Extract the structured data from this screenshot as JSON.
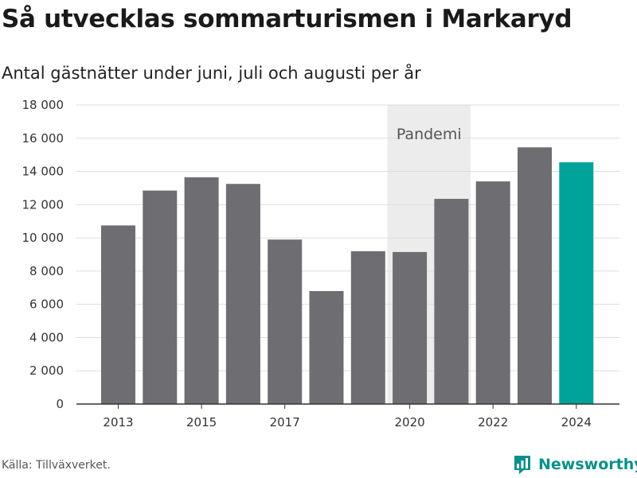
{
  "header": {
    "title": "Så utvecklas sommarturismen i Markaryd",
    "subtitle": "Antal gästnätter under juni, juli och augusti per år"
  },
  "footer": {
    "source": "Källa: Tillväxverket.",
    "brand": "Newsworthy",
    "brand_icon": "bar-chart-logo-icon"
  },
  "colors": {
    "bar": "#6e6d72",
    "highlight": "#00a39a",
    "pandemic_band": "#ececec",
    "grid": "#dddddd",
    "axis": "#333333",
    "brand": "#0a8f8a"
  },
  "chart_data": {
    "type": "bar",
    "categories": [
      2013,
      2014,
      2015,
      2016,
      2017,
      2018,
      2019,
      2020,
      2021,
      2022,
      2023,
      2024
    ],
    "values": [
      10750,
      12850,
      13650,
      13250,
      9900,
      6800,
      9200,
      9150,
      12350,
      13400,
      15450,
      14550
    ],
    "highlight_category": 2024,
    "ylim": [
      0,
      18000
    ],
    "yticks": [
      0,
      2000,
      4000,
      6000,
      8000,
      10000,
      12000,
      14000,
      16000,
      18000
    ],
    "ytick_labels": [
      "0",
      "2 000",
      "4 000",
      "6 000",
      "8 000",
      "10 000",
      "12 000",
      "14 000",
      "16 000",
      "18 000"
    ],
    "xtick_labels_shown": [
      2013,
      2015,
      2017,
      2020,
      2022,
      2024
    ],
    "xlabel": "",
    "ylabel": "",
    "grid": "horizontal",
    "annotation": {
      "label": "Pandemi",
      "from": 2020,
      "to": 2021
    }
  }
}
